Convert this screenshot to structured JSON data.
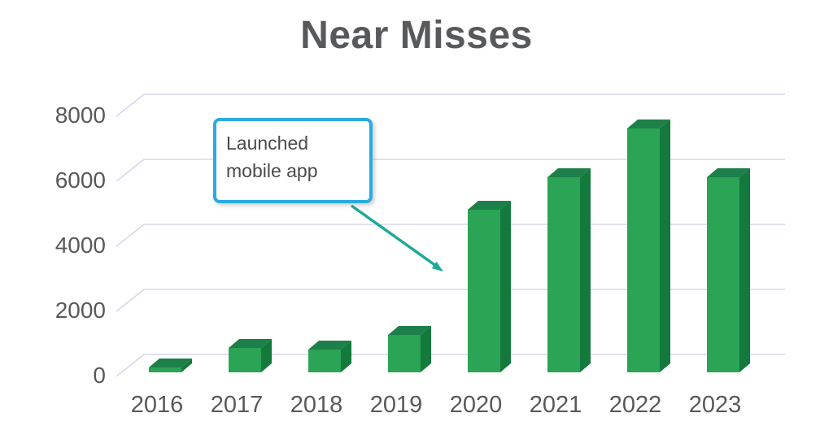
{
  "chart_data": {
    "type": "bar",
    "style": "3d-column",
    "title": "Near Misses",
    "categories": [
      "2016",
      "2017",
      "2018",
      "2019",
      "2020",
      "2021",
      "2022",
      "2023"
    ],
    "values": [
      150,
      750,
      700,
      1150,
      5000,
      6000,
      7500,
      6000
    ],
    "yticks": [
      0,
      2000,
      4000,
      6000,
      8000
    ],
    "ylim": [
      0,
      8000
    ],
    "xlabel": "",
    "ylabel": "",
    "grid": true,
    "legend": false,
    "annotation": {
      "text": "Launched mobile app",
      "target_category": "2020"
    },
    "colors": {
      "bar_front": "#2BA455",
      "bar_top": "#1D7F4A",
      "bar_side": "#13793C",
      "gridline": "#D6D6F0",
      "axis_text": "#595959",
      "title_text": "#58595B",
      "callout_border": "#29ABE2",
      "callout_text": "#4A4A4A",
      "arrow": "#1FA99A",
      "background": "#FFFFFF"
    }
  }
}
